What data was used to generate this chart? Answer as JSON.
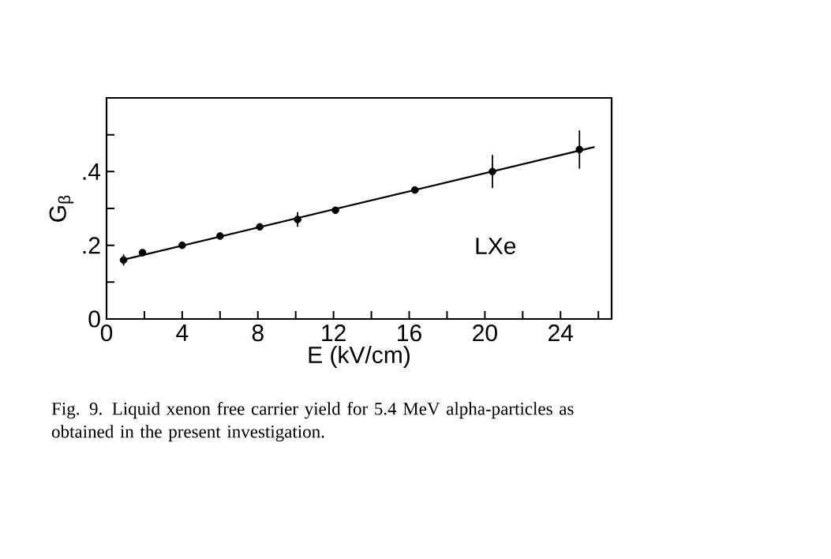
{
  "chart_data": {
    "type": "scatter",
    "xlabel": "E (kV/cm)",
    "ylabel": "G$_{β}$",
    "xlim": [
      0,
      26.7
    ],
    "ylim": [
      0,
      0.6
    ],
    "xticks": [
      0,
      {
        "value": 2,
        "label": null
      },
      4,
      {
        "value": 6,
        "label": null
      },
      8,
      {
        "value": 10,
        "label": null
      },
      12,
      {
        "value": 14,
        "label": null
      },
      16,
      {
        "value": 18,
        "label": null
      },
      20,
      {
        "value": 22,
        "label": null
      },
      24,
      {
        "value": 26,
        "label": null
      }
    ],
    "yticks": [
      0,
      {
        "value": 0.1,
        "label": null
      },
      {
        "value": 0.2,
        "label": ".2"
      },
      {
        "value": 0.3,
        "label": null
      },
      {
        "value": 0.4,
        "label": ".4"
      },
      {
        "value": 0.5,
        "label": null
      }
    ],
    "grid": false,
    "marker": "circle",
    "series": [
      {
        "color": "#000000",
        "x": [
          0.9,
          1.9,
          4.0,
          6.0,
          8.1,
          10.1,
          12.1,
          16.3,
          20.4,
          25.0
        ],
        "values": [
          0.16,
          0.18,
          0.2,
          0.225,
          0.25,
          0.27,
          0.295,
          0.35,
          0.4,
          0.46
        ],
        "errors": [
          0.015,
          null,
          null,
          null,
          null,
          0.02,
          null,
          null,
          0.045,
          0.052
        ]
      },
      {
        "type": "line",
        "color": "#000000",
        "x": [
          0.9,
          25.8
        ],
        "values": [
          0.161,
          0.467
        ],
        "marker": "none"
      }
    ],
    "annotations": [
      "LXe",
      "Fig. 9. Liquid xenon free carrier yield for 5.4 MeV alpha-particles as obtained in the present investigation."
    ]
  }
}
